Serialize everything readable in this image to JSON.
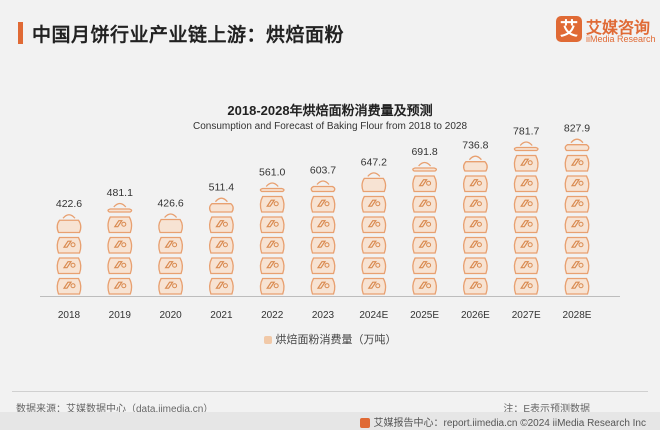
{
  "header": {
    "page_title": "中国月饼行业产业链上游：烘焙面粉",
    "logo_mark": "艾",
    "logo_cn": "艾媒咨询",
    "logo_en": "iiMedia Research"
  },
  "chart_data": {
    "type": "bar",
    "title": "2018-2028年烘焙面粉消费量及预测",
    "subtitle": "Consumption and Forecast  of Baking Flour  from 2018 to 2028",
    "categories": [
      "2018",
      "2019",
      "2020",
      "2021",
      "2022",
      "2023",
      "2024E",
      "2025E",
      "2026E",
      "2027E",
      "2028E"
    ],
    "series": [
      {
        "name": "烘焙面粉消费量（万吨）",
        "values": [
          422.6,
          481.1,
          426.6,
          511.4,
          561.0,
          603.7,
          647.2,
          691.8,
          736.8,
          781.7,
          827.9
        ]
      }
    ],
    "value_labels": [
      "422.6",
      "481.1",
      "426.6",
      "511.4",
      "561.0",
      "603.7",
      "647.2",
      "691.8",
      "736.8",
      "781.7",
      "827.9"
    ],
    "ylim": [
      0,
      900
    ],
    "grid": false,
    "legend_position": "bottom",
    "colors": {
      "fill": "#f7e3d3",
      "stroke": "#e8a070",
      "mark": "#d98a50"
    }
  },
  "footer": {
    "source": "数据来源：艾媒数据中心（data.iimedia.cn）",
    "note": "注：E表示预测数据",
    "strip": "艾媒报告中心：report.iimedia.cn  ©2024  iiMedia Research  Inc"
  }
}
